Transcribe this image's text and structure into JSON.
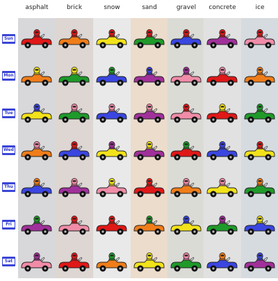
{
  "surfaces": [
    {
      "label": "asphalt",
      "color": "#d8d8da"
    },
    {
      "label": "brick",
      "color": "#ddd6d2"
    },
    {
      "label": "snow",
      "color": "#e9e9e9"
    },
    {
      "label": "sand",
      "color": "#ecdccc"
    },
    {
      "label": "gravel",
      "color": "#dbdbd6"
    },
    {
      "label": "concrete",
      "color": "#e1e1e1"
    },
    {
      "label": "ice",
      "color": "#d6dbe0"
    }
  ],
  "days": [
    "Sun",
    "Mon",
    "Tue",
    "Wed",
    "Thu",
    "Fri",
    "Sat"
  ],
  "car_colors": {
    "red": "#e01818",
    "orange": "#ef7d1a",
    "green": "#1f9a2a",
    "pink": "#f08ca8",
    "purple": "#a0309a",
    "yellow": "#f2e21a",
    "blue": "#3a46e0"
  },
  "cells": [
    [
      {
        "car": "red",
        "driver": "red"
      },
      {
        "car": "orange",
        "driver": "red"
      },
      {
        "car": "yellow",
        "driver": "red"
      },
      {
        "car": "green",
        "driver": "red"
      },
      {
        "car": "blue",
        "driver": "red"
      },
      {
        "car": "purple",
        "driver": "red"
      },
      {
        "car": "pink",
        "driver": "red"
      }
    ],
    [
      {
        "car": "orange",
        "driver": "yellow"
      },
      {
        "car": "green",
        "driver": "yellow"
      },
      {
        "car": "blue",
        "driver": "green"
      },
      {
        "car": "purple",
        "driver": "blue"
      },
      {
        "car": "pink",
        "driver": "purple"
      },
      {
        "car": "red",
        "driver": "pink"
      },
      {
        "car": "orange",
        "driver": "orange"
      }
    ],
    [
      {
        "car": "yellow",
        "driver": "blue"
      },
      {
        "car": "green",
        "driver": "pink"
      },
      {
        "car": "blue",
        "driver": "pink"
      },
      {
        "car": "purple",
        "driver": "pink"
      },
      {
        "car": "pink",
        "driver": "red"
      },
      {
        "car": "red",
        "driver": "yellow"
      },
      {
        "car": "green",
        "driver": "green"
      }
    ],
    [
      {
        "car": "orange",
        "driver": "pink"
      },
      {
        "car": "blue",
        "driver": "red"
      },
      {
        "car": "yellow",
        "driver": "purple"
      },
      {
        "car": "purple",
        "driver": "yellow"
      },
      {
        "car": "red",
        "driver": "green"
      },
      {
        "car": "blue",
        "driver": "blue"
      },
      {
        "car": "yellow",
        "driver": "red"
      }
    ],
    [
      {
        "car": "blue",
        "driver": "orange"
      },
      {
        "car": "purple",
        "driver": "pink"
      },
      {
        "car": "pink",
        "driver": "yellow"
      },
      {
        "car": "red",
        "driver": "red"
      },
      {
        "car": "orange",
        "driver": "pink"
      },
      {
        "car": "yellow",
        "driver": "pink"
      },
      {
        "car": "green",
        "driver": "orange"
      }
    ],
    [
      {
        "car": "purple",
        "driver": "green"
      },
      {
        "car": "pink",
        "driver": "red"
      },
      {
        "car": "red",
        "driver": "red"
      },
      {
        "car": "orange",
        "driver": "green"
      },
      {
        "car": "yellow",
        "driver": "blue"
      },
      {
        "car": "green",
        "driver": "purple"
      },
      {
        "car": "blue",
        "driver": "yellow"
      }
    ],
    [
      {
        "car": "pink",
        "driver": "purple"
      },
      {
        "car": "red",
        "driver": "red"
      },
      {
        "car": "orange",
        "driver": "green"
      },
      {
        "car": "yellow",
        "driver": "yellow"
      },
      {
        "car": "green",
        "driver": "pink"
      },
      {
        "car": "blue",
        "driver": "orange"
      },
      {
        "car": "purple",
        "driver": "blue"
      }
    ]
  ]
}
